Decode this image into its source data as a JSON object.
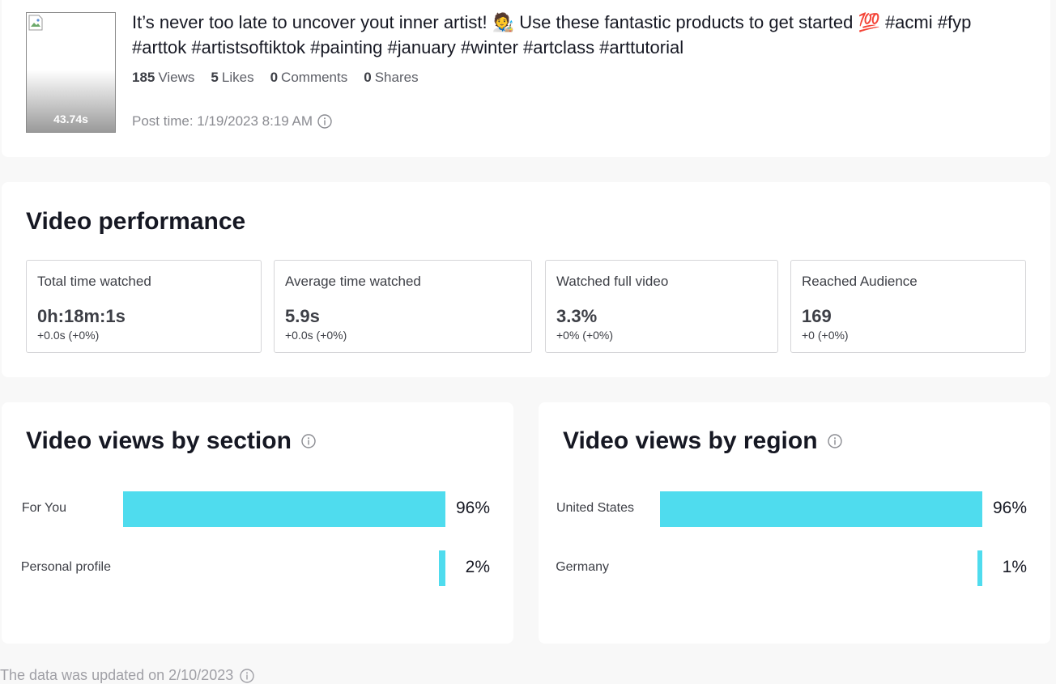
{
  "post": {
    "duration": "43.74s",
    "caption_line1": "It’s never too late to uncover yout inner artist! 🧑‍🎨 Use these fantastic products to get started 💯 #acmi #fyp",
    "caption_line2": "#arttok #artistsoftiktok #painting #january #winter #artclass #arttutorial",
    "stats": {
      "views_count": "185",
      "views_label": "Views",
      "likes_count": "5",
      "likes_label": "Likes",
      "comments_count": "0",
      "comments_label": "Comments",
      "shares_count": "0",
      "shares_label": "Shares"
    },
    "post_time": "Post time: 1/19/2023 8:19 AM"
  },
  "performance": {
    "title": "Video performance",
    "metrics": [
      {
        "label": "Total time watched",
        "value": "0h:18m:1s",
        "delta": "+0.0s (+0%)"
      },
      {
        "label": "Average time watched",
        "value": "5.9s",
        "delta": "+0.0s (+0%)"
      },
      {
        "label": "Watched full video",
        "value": "3.3%",
        "delta": "+0% (+0%)"
      },
      {
        "label": "Reached Audience",
        "value": "169",
        "delta": "+0 (+0%)"
      }
    ]
  },
  "sections": {
    "title": "Video views by section",
    "rows": [
      {
        "label": "For You",
        "pct_label": "96%"
      },
      {
        "label": "Personal profile",
        "pct_label": "2%"
      }
    ]
  },
  "regions": {
    "title": "Video views by region",
    "rows": [
      {
        "label": "United States",
        "pct_label": "96%"
      },
      {
        "label": "Germany",
        "pct_label": "1%"
      }
    ]
  },
  "footer": {
    "note": "The data was updated on 2/10/2023"
  },
  "chart_data": [
    {
      "type": "bar",
      "title": "Video views by section",
      "categories": [
        "For You",
        "Personal profile"
      ],
      "values": [
        96,
        2
      ],
      "unit": "%"
    },
    {
      "type": "bar",
      "title": "Video views by region",
      "categories": [
        "United States",
        "Germany"
      ],
      "values": [
        96,
        1
      ],
      "unit": "%"
    }
  ],
  "colors": {
    "bar": "#4fdcee",
    "text": "#161823",
    "muted": "#8a8b91"
  }
}
